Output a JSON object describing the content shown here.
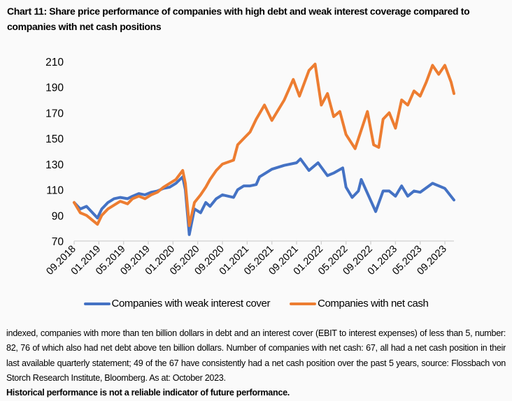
{
  "title": "Chart 11: Share price performance of companies with high debt and weak interest coverage compared to companies with net cash positions",
  "note": "indexed, companies with more than ten billion dollars in debt and an interest cover (EBIT to interest expenses) of less than 5, number: 82, 76 of which also had net debt above ten billion dollars. Number of companies with net cash: 67, all had a net cash position in their last available quarterly statement; 49 of the 67 have consistently had a net cash position over the past 5 years, source: Flossbach von Storch Research Institute, Bloomberg. As at: October 2023.",
  "disclaimer": "Historical performance is not a reliable indicator of future performance.",
  "chart_data": {
    "type": "line",
    "title": "",
    "xlabel": "",
    "ylabel": "",
    "ylim": [
      70,
      210
    ],
    "yticks": [
      "70",
      "90",
      "110",
      "130",
      "150",
      "170",
      "190",
      "210"
    ],
    "xticks": [
      "09.2018",
      "01.2019",
      "05.2019",
      "09.2019",
      "01.2020",
      "05.2020",
      "09.2020",
      "01.2021",
      "05.2021",
      "09.2021",
      "01.2022",
      "05.2022",
      "09.2022",
      "01.2023",
      "05.2023",
      "09.2023"
    ],
    "xlim": [
      "2018-09-01",
      "2023-10-15"
    ],
    "grid": false,
    "legend": "bottom",
    "series": [
      {
        "name": "Companies with weak interest cover",
        "color": "#4472c4",
        "points": [
          [
            "2018-09-01",
            100
          ],
          [
            "2018-10-01",
            95
          ],
          [
            "2018-11-01",
            97
          ],
          [
            "2018-12-24",
            88
          ],
          [
            "2019-01-15",
            95
          ],
          [
            "2019-02-15",
            100
          ],
          [
            "2019-03-15",
            103
          ],
          [
            "2019-04-15",
            104
          ],
          [
            "2019-05-20",
            103
          ],
          [
            "2019-06-15",
            105
          ],
          [
            "2019-07-15",
            107
          ],
          [
            "2019-08-15",
            106
          ],
          [
            "2019-09-15",
            108
          ],
          [
            "2019-10-15",
            109
          ],
          [
            "2019-11-15",
            111
          ],
          [
            "2019-12-15",
            112
          ],
          [
            "2020-01-15",
            115
          ],
          [
            "2020-02-18",
            120
          ],
          [
            "2020-03-01",
            110
          ],
          [
            "2020-03-20",
            75
          ],
          [
            "2020-04-15",
            95
          ],
          [
            "2020-05-15",
            92
          ],
          [
            "2020-06-10",
            100
          ],
          [
            "2020-07-01",
            97
          ],
          [
            "2020-08-01",
            103
          ],
          [
            "2020-09-01",
            106
          ],
          [
            "2020-10-25",
            104
          ],
          [
            "2020-11-15",
            110
          ],
          [
            "2020-12-15",
            113
          ],
          [
            "2021-01-15",
            113
          ],
          [
            "2021-02-15",
            114
          ],
          [
            "2021-03-01",
            120
          ],
          [
            "2021-05-01",
            126
          ],
          [
            "2021-07-01",
            129
          ],
          [
            "2021-09-01",
            131
          ],
          [
            "2021-09-20",
            134
          ],
          [
            "2021-11-01",
            125
          ],
          [
            "2021-12-15",
            131
          ],
          [
            "2022-02-01",
            121
          ],
          [
            "2022-03-01",
            123
          ],
          [
            "2022-04-15",
            127
          ],
          [
            "2022-05-01",
            112
          ],
          [
            "2022-06-01",
            104
          ],
          [
            "2022-07-01",
            109
          ],
          [
            "2022-07-15",
            118
          ],
          [
            "2022-09-25",
            93
          ],
          [
            "2022-11-01",
            109
          ],
          [
            "2022-12-01",
            109
          ],
          [
            "2023-01-01",
            105
          ],
          [
            "2023-02-01",
            113
          ],
          [
            "2023-03-01",
            105
          ],
          [
            "2023-04-01",
            109
          ],
          [
            "2023-05-01",
            108
          ],
          [
            "2023-07-01",
            115
          ],
          [
            "2023-09-01",
            111
          ],
          [
            "2023-10-15",
            102
          ]
        ]
      },
      {
        "name": "Companies with net cash",
        "color": "#ed7d31",
        "points": [
          [
            "2018-09-01",
            100
          ],
          [
            "2018-10-01",
            92
          ],
          [
            "2018-11-01",
            90
          ],
          [
            "2018-12-24",
            83
          ],
          [
            "2019-01-15",
            90
          ],
          [
            "2019-02-15",
            95
          ],
          [
            "2019-03-15",
            98
          ],
          [
            "2019-04-15",
            101
          ],
          [
            "2019-05-20",
            99
          ],
          [
            "2019-06-15",
            103
          ],
          [
            "2019-07-15",
            105
          ],
          [
            "2019-08-15",
            103
          ],
          [
            "2019-09-15",
            106
          ],
          [
            "2019-10-15",
            108
          ],
          [
            "2019-11-15",
            112
          ],
          [
            "2019-12-15",
            115
          ],
          [
            "2020-01-15",
            118
          ],
          [
            "2020-02-18",
            125
          ],
          [
            "2020-03-01",
            115
          ],
          [
            "2020-03-20",
            82
          ],
          [
            "2020-04-15",
            100
          ],
          [
            "2020-05-15",
            106
          ],
          [
            "2020-06-10",
            112
          ],
          [
            "2020-07-01",
            118
          ],
          [
            "2020-08-01",
            125
          ],
          [
            "2020-09-01",
            130
          ],
          [
            "2020-10-25",
            133
          ],
          [
            "2020-11-15",
            145
          ],
          [
            "2020-12-15",
            150
          ],
          [
            "2021-01-15",
            155
          ],
          [
            "2021-02-15",
            165
          ],
          [
            "2021-03-25",
            176
          ],
          [
            "2021-05-01",
            164
          ],
          [
            "2021-07-01",
            180
          ],
          [
            "2021-08-15",
            196
          ],
          [
            "2021-09-15",
            183
          ],
          [
            "2021-11-01",
            203
          ],
          [
            "2021-12-01",
            208
          ],
          [
            "2022-01-01",
            176
          ],
          [
            "2022-02-01",
            185
          ],
          [
            "2022-03-01",
            167
          ],
          [
            "2022-04-01",
            171
          ],
          [
            "2022-05-01",
            153
          ],
          [
            "2022-06-15",
            142
          ],
          [
            "2022-08-15",
            171
          ],
          [
            "2022-09-15",
            145
          ],
          [
            "2022-10-10",
            143
          ],
          [
            "2022-11-01",
            165
          ],
          [
            "2022-12-01",
            170
          ],
          [
            "2023-01-01",
            158
          ],
          [
            "2023-02-01",
            180
          ],
          [
            "2023-03-01",
            176
          ],
          [
            "2023-04-01",
            187
          ],
          [
            "2023-05-01",
            183
          ],
          [
            "2023-06-01",
            194
          ],
          [
            "2023-07-01",
            207
          ],
          [
            "2023-08-01",
            200
          ],
          [
            "2023-09-01",
            207
          ],
          [
            "2023-10-01",
            194
          ],
          [
            "2023-10-15",
            185
          ]
        ]
      }
    ]
  }
}
